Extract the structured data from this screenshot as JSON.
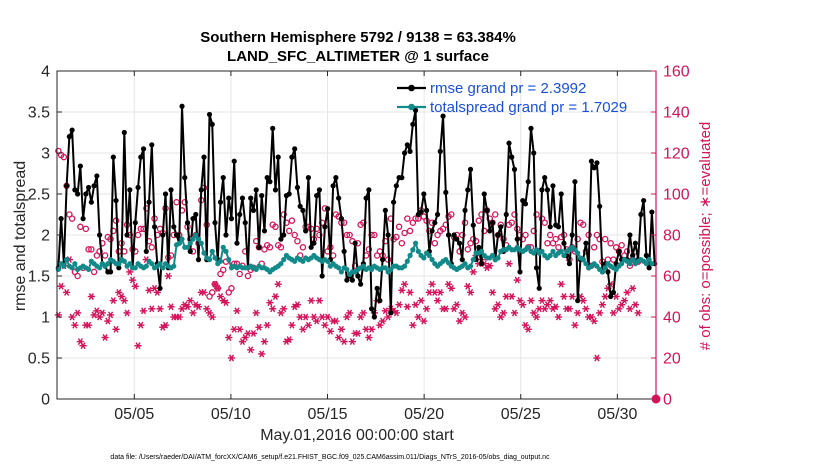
{
  "chart_data": {
    "type": "line",
    "title_line1": "Southern Hemisphere 5792 / 9138 = 63.384%",
    "title_line2": "LAND_SFC_ALTIMETER @ 1 surface",
    "xlabel": "May.01,2016 00:00:00 start",
    "ylabel": "rmse and totalspread",
    "ylabel_right": "# of obs: o=possible; ∗=evaluated",
    "footnote": "data file: /Users/raeder/DAI/ATM_forcXX/CAM6_setup/f.e21.FHIST_BGC.f09_025.CAM6assim.011/Diags_NTrS_2016-05/obs_diag_output.nc",
    "xlim": [
      1,
      32
    ],
    "ylim": [
      0,
      4
    ],
    "ylim_right": [
      0,
      160
    ],
    "x_ticks": [
      5,
      10,
      15,
      20,
      25,
      30
    ],
    "x_tick_labels": [
      "05/05",
      "05/10",
      "05/15",
      "05/20",
      "05/25",
      "05/30"
    ],
    "y_ticks": [
      "0",
      "0.5",
      "1",
      "1.5",
      "2",
      "2.5",
      "3",
      "3.5",
      "4"
    ],
    "y_ticks_right": [
      "0",
      "20",
      "40",
      "60",
      "80",
      "100",
      "120",
      "140",
      "160"
    ],
    "colors": {
      "rmse": "#000000",
      "spread": "#138a8a",
      "obs": "#d4145a",
      "legend_text": "#1a4fd8"
    },
    "series": [
      {
        "name": "rmse grand pr = 2.3992",
        "axis": "left",
        "style": "line-dots",
        "values": [
          1.6,
          2.2,
          1.65,
          2.6,
          3.2,
          3.28,
          2.55,
          2.5,
          2.84,
          2.2,
          2.5,
          2.58,
          2.4,
          2.6,
          2.72,
          2.0,
          1.65,
          1.62,
          1.55,
          1.55,
          2.95,
          2.42,
          1.6,
          1.7,
          3.25,
          2.0,
          2.55,
          1.6,
          2.15,
          2.58,
          2.95,
          3.05,
          1.8,
          2.4,
          3.1,
          2.1,
          1.65,
          1.35,
          2.0,
          2.5,
          1.6,
          2.55,
          2.1,
          2.0,
          1.9,
          3.57,
          2.7,
          2.15,
          1.8,
          2.2,
          2.25,
          1.7,
          2.55,
          2.95,
          1.7,
          3.47,
          3.35,
          2.15,
          1.7,
          2.4,
          2.7,
          2.0,
          2.45,
          2.2,
          2.9,
          1.9,
          2.25,
          2.45,
          2.15,
          1.6,
          2.45,
          2.3,
          2.55,
          1.85,
          2.48,
          2.05,
          2.7,
          2.65,
          3.3,
          2.55,
          2.95,
          1.95,
          2.0,
          2.48,
          2.5,
          2.95,
          3.05,
          2.58,
          2.35,
          2.3,
          2.05,
          2.7,
          1.85,
          1.9,
          2.48,
          2.55,
          1.5,
          2.1,
          2.32,
          1.7,
          2.6,
          2.7,
          2.45,
          2.2,
          1.8,
          1.45,
          1.5,
          1.45,
          1.9,
          1.5,
          1.4,
          1.65,
          2.45,
          2.55,
          1.1,
          1.0,
          1.35,
          1.2,
          1.7,
          2.3,
          2.0,
          1.05,
          2.4,
          2.6,
          2.7,
          2.7,
          3.0,
          3.1,
          3.02,
          3.35,
          3.52,
          2.25,
          2.28,
          2.5,
          2.3,
          1.8,
          2.05,
          2.15,
          2.25,
          3.02,
          3.45,
          2.52,
          2.0,
          1.65,
          2.0,
          1.95,
          1.9,
          1.7,
          2.3,
          2.55,
          2.8,
          2.12,
          1.7,
          1.85,
          1.65,
          2.5,
          2.3,
          2.05,
          2.15,
          1.7,
          2.0,
          2.1,
          1.8,
          2.25,
          3.12,
          2.95,
          2.8,
          1.95,
          1.55,
          2.42,
          2.38,
          2.65,
          3.3,
          3.0,
          1.6,
          1.35,
          2.55,
          2.7,
          2.55,
          2.1,
          2.6,
          2.12,
          2.1,
          2.5,
          1.9,
          1.75,
          1.65,
          2.0,
          2.65,
          1.2,
          1.7,
          1.7,
          1.9,
          1.6,
          2.9,
          2.82,
          2.88,
          2.35,
          1.55,
          1.65,
          1.55,
          1.25,
          1.3,
          1.65,
          1.8,
          1.7,
          1.7,
          1.7,
          2.0,
          1.75,
          1.9,
          1.7,
          2.25,
          2.42,
          1.75,
          1.6,
          2.28,
          1.65
        ]
      },
      {
        "name": "totalspread grand pr = 1.7029",
        "axis": "left",
        "style": "line-dots",
        "values": [
          1.58,
          1.65,
          1.62,
          1.7,
          1.62,
          1.6,
          1.65,
          1.58,
          1.6,
          1.62,
          1.6,
          1.58,
          1.68,
          1.65,
          1.62,
          1.6,
          1.65,
          1.62,
          1.65,
          1.7,
          1.68,
          1.65,
          1.65,
          1.7,
          1.68,
          1.62,
          1.65,
          1.6,
          1.6,
          1.65,
          1.62,
          1.6,
          1.62,
          1.68,
          1.65,
          1.6,
          1.62,
          1.65,
          1.6,
          1.65,
          1.62,
          1.6,
          1.62,
          1.88,
          1.9,
          1.95,
          1.85,
          1.85,
          1.9,
          1.95,
          2.0,
          1.95,
          1.9,
          1.78,
          1.72,
          1.7,
          1.8,
          1.72,
          1.65,
          1.68,
          1.85,
          1.8,
          1.7,
          1.6,
          1.62,
          1.6,
          1.62,
          1.6,
          1.6,
          1.6,
          1.62,
          1.6,
          1.58,
          1.62,
          1.6,
          1.6,
          1.58,
          1.55,
          1.58,
          1.6,
          1.62,
          1.65,
          1.7,
          1.75,
          1.72,
          1.7,
          1.68,
          1.72,
          1.7,
          1.68,
          1.72,
          1.7,
          1.72,
          1.75,
          1.72,
          1.7,
          1.68,
          1.7,
          1.68,
          1.62,
          1.65,
          1.62,
          1.6,
          1.55,
          1.6,
          1.58,
          1.52,
          1.55,
          1.55,
          1.58,
          1.6,
          1.62,
          1.58,
          1.6,
          1.58,
          1.62,
          1.6,
          1.58,
          1.6,
          1.6,
          1.55,
          1.58,
          1.62,
          1.62,
          1.6,
          1.6,
          1.62,
          1.68,
          1.75,
          1.82,
          1.9,
          1.8,
          1.75,
          1.72,
          1.78,
          1.75,
          1.7,
          1.65,
          1.62,
          1.65,
          1.68,
          1.7,
          1.66,
          1.62,
          1.6,
          1.58,
          1.6,
          1.62,
          1.65,
          1.6,
          1.62,
          1.7,
          1.78,
          1.78,
          1.8,
          1.75,
          1.72,
          1.72,
          1.75,
          1.7,
          1.72,
          1.8,
          1.82,
          1.82,
          1.85,
          1.82,
          1.82,
          1.85,
          1.82,
          1.8,
          1.82,
          1.85,
          1.8,
          1.78,
          1.82,
          1.78,
          1.8,
          1.75,
          1.72,
          1.75,
          1.8,
          1.75,
          1.78,
          1.8,
          1.75,
          1.8,
          1.82,
          1.85,
          1.82,
          1.78,
          1.72,
          1.7,
          1.65,
          1.6,
          1.62,
          1.65,
          1.62,
          1.58,
          1.55,
          1.6,
          1.65,
          1.62,
          1.6,
          1.58,
          1.62,
          1.65,
          1.7,
          1.68,
          1.65,
          1.7,
          1.65,
          1.68,
          1.7,
          1.68,
          1.65,
          1.7,
          1.65
        ]
      },
      {
        "name": "possible",
        "axis": "right",
        "style": "circles",
        "values": [
          121,
          119,
          118,
          104,
          90,
          88,
          62,
          60,
          84,
          64,
          83,
          73,
          73,
          62,
          70,
          72,
          76,
          70,
          79,
          78,
          82,
          87,
          72,
          76,
          72,
          85,
          80,
          73,
          72,
          80,
          83,
          83,
          93,
          77,
          74,
          88,
          80,
          83,
          81,
          93,
          69,
          70,
          80,
          96,
          80,
          92,
          96,
          84,
          78,
          72,
          80,
          76,
          97,
          103,
          85,
          50,
          52,
          56,
          54,
          61,
          63,
          67,
          52,
          54,
          66,
          66,
          61,
          65,
          72,
          60,
          63,
          64,
          77,
          74,
          66,
          73,
          75,
          74,
          85,
          84,
          75,
          74,
          90,
          86,
          82,
          87,
          80,
          77,
          70,
          74,
          84,
          84,
          83,
          78,
          83,
          80,
          86,
          93,
          72,
          74,
          70,
          90,
          89,
          86,
          86,
          80,
          80,
          77,
          65,
          76,
          85,
          86,
          70,
          73,
          80,
          80,
          70,
          72,
          70,
          77,
          68,
          88,
          78,
          79,
          84,
          76,
          81,
          88,
          82,
          86,
          88,
          88,
          92,
          89,
          87,
          82,
          86,
          76,
          80,
          82,
          83,
          85,
          89,
          90,
          79,
          80,
          72,
          80,
          86,
          73,
          76,
          78,
          77,
          87,
          90,
          82,
          92,
          88,
          86,
          90,
          80,
          85,
          78,
          75,
          85,
          86,
          90,
          83,
          80,
          78,
          80,
          74,
          74,
          82,
          90,
          72,
          88,
          86,
          76,
          80,
          76,
          78,
          74,
          79,
          80,
          73,
          68,
          74,
          72,
          78,
          86,
          85,
          72,
          80,
          65,
          74,
          80,
          78,
          67,
          78,
          68,
          76,
          68,
          74,
          72,
          75,
          70,
          72,
          65,
          68,
          72,
          67
        ]
      },
      {
        "name": "evaluated",
        "axis": "right",
        "style": "asterisks",
        "values": [
          41,
          55,
          65,
          52,
          68,
          40,
          36,
          42,
          28,
          26,
          36,
          36,
          50,
          41,
          43,
          40,
          42,
          30,
          38,
          41,
          48,
          34,
          52,
          50,
          48,
          42,
          62,
          58,
          55,
          26,
          36,
          43,
          68,
          53,
          44,
          54,
          52,
          44,
          35,
          36,
          60,
          45,
          40,
          40,
          40,
          44,
          46,
          45,
          48,
          42,
          46,
          45,
          52,
          52,
          44,
          42,
          40,
          56,
          54,
          50,
          48,
          47,
          30,
          20,
          34,
          43,
          34,
          28,
          30,
          32,
          24,
          32,
          42,
          35,
          22,
          28,
          36,
          47,
          44,
          50,
          56,
          42,
          44,
          28,
          29,
          36,
          45,
          46,
          40,
          34,
          40,
          36,
          48,
          40,
          38,
          48,
          40,
          36,
          40,
          33,
          38,
          38,
          30,
          34,
          28,
          40,
          42,
          28,
          32,
          32,
          40,
          42,
          34,
          30,
          34,
          42,
          48,
          36,
          38,
          43,
          40,
          44,
          43,
          42,
          46,
          53,
          56,
          45,
          52,
          36,
          46,
          40,
          48,
          38,
          44,
          52,
          56,
          52,
          48,
          52,
          44,
          44,
          56,
          54,
          44,
          46,
          38,
          42,
          40,
          55,
          52,
          62,
          70,
          66,
          68,
          66,
          64,
          65,
          52,
          44,
          46,
          40,
          42,
          50,
          66,
          50,
          42,
          58,
          48,
          46,
          36,
          34,
          48,
          42,
          40,
          44,
          48,
          44,
          46,
          48,
          44,
          45,
          40,
          56,
          50,
          44,
          44,
          50,
          36,
          42,
          50,
          48,
          44,
          40,
          40,
          38,
          20,
          42,
          46,
          50,
          54,
          56,
          42,
          50,
          44,
          46,
          48,
          52,
          44,
          54,
          46,
          42
        ]
      }
    ]
  }
}
